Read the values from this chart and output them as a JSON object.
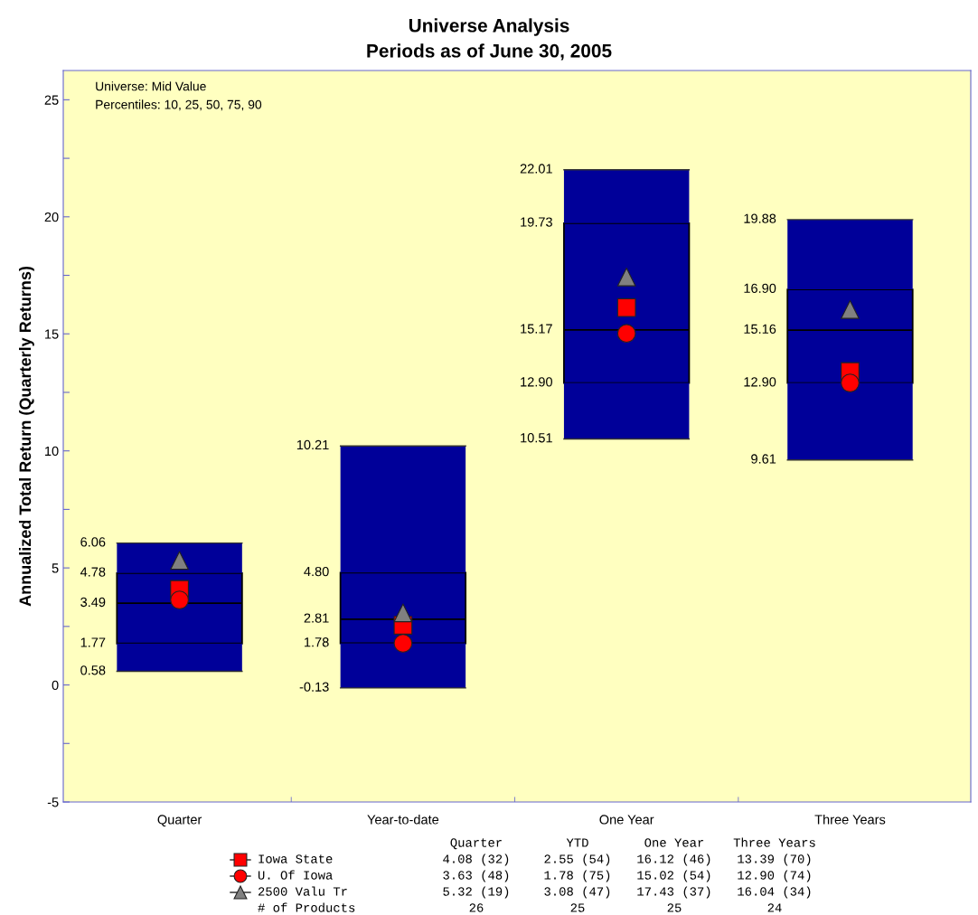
{
  "chart_data": {
    "type": "box",
    "title": "Universe Analysis",
    "subtitle": "Periods as of June 30, 2005",
    "ylabel": "Annualized Total Return (Quarterly Returns)",
    "categories": [
      "Quarter",
      "Year-to-date",
      "One Year",
      "Three Years"
    ],
    "boxes": [
      {
        "low": 0.58,
        "q1": 1.77,
        "median": 3.49,
        "q3": 4.78,
        "high": 6.06
      },
      {
        "low": -0.13,
        "q1": 1.78,
        "median": 2.81,
        "q3": 4.8,
        "high": 10.21
      },
      {
        "low": 10.51,
        "q1": 12.9,
        "median": 15.17,
        "q3": 19.73,
        "high": 22.01
      },
      {
        "low": 9.61,
        "q1": 12.9,
        "median": 15.16,
        "q3": 16.9,
        "high": 19.88
      }
    ],
    "colors": [
      "#000099",
      "#000099",
      "#000099",
      "#000099"
    ],
    "ylim": [
      -5,
      26.25
    ],
    "yticks": [
      -5,
      {
        "value": -2.5,
        "label": null
      },
      0,
      {
        "value": 2.5,
        "label": null
      },
      5,
      {
        "value": 7.5,
        "label": null
      },
      10,
      {
        "value": 12.5,
        "label": null
      },
      15,
      {
        "value": 17.5,
        "label": null
      },
      20,
      {
        "value": 22.5,
        "label": null
      },
      25
    ],
    "legend": "bottom",
    "annotations": [
      "Universe: Mid Value",
      "Percentiles: 10, 25, 50, 75, 90",
      "0.58",
      "1.77",
      "3.49",
      "4.78",
      "6.06",
      "-0.13",
      "1.78",
      "2.81",
      "4.80",
      "10.21",
      "10.51",
      "12.90",
      "15.17",
      "19.73",
      "22.01",
      "9.61",
      "12.90",
      "15.16",
      "16.90",
      "19.88",
      "Quarter",
      "YTD",
      "One Year",
      "Three Years",
      "4.08 (32)",
      "2.55 (54)",
      "16.12 (46)",
      "13.39 (70)",
      "3.63 (48)",
      "1.78 (75)",
      "15.02 (54)",
      "12.90 (74)",
      "5.32 (19)",
      "3.08 (47)",
      "17.43 (37)",
      "16.04 (34)",
      "# of Products",
      "26",
      "25",
      "25",
      "24"
    ],
    "series": [
      {
        "name": "Iowa State",
        "type": "scatter",
        "marker": "square",
        "color": "#ff0000",
        "x": [
          "Quarter",
          "Year-to-date",
          "One Year",
          "Three Years"
        ],
        "values": [
          4.08,
          2.55,
          16.12,
          13.39
        ]
      },
      {
        "name": "U. Of Iowa",
        "type": "scatter",
        "marker": "circle",
        "color": "#ff0000",
        "x": [
          "Quarter",
          "Year-to-date",
          "One Year",
          "Three Years"
        ],
        "values": [
          3.63,
          1.78,
          15.02,
          12.9
        ]
      },
      {
        "name": "2500 Valu Tr",
        "type": "scatter",
        "marker": "triangle",
        "color": "#808080",
        "x": [
          "Quarter",
          "Year-to-date",
          "One Year",
          "Three Years"
        ],
        "values": [
          5.32,
          3.08,
          17.43,
          16.04
        ]
      }
    ]
  }
}
